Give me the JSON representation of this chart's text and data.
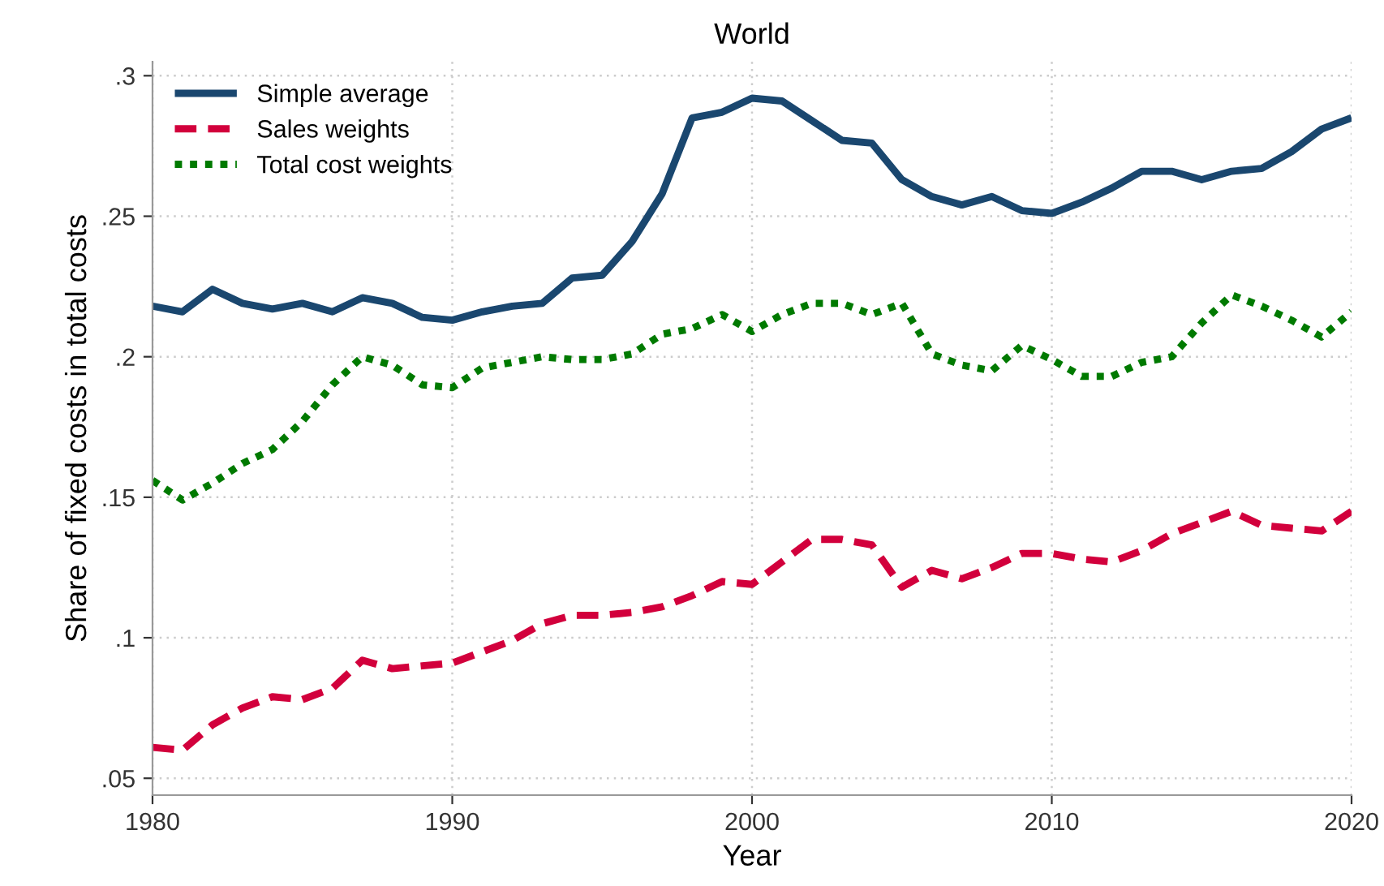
{
  "chart_data": {
    "type": "line",
    "title": "World",
    "xlabel": "Year",
    "ylabel": "Share of fixed costs in total costs",
    "x": [
      1980,
      1981,
      1982,
      1983,
      1984,
      1985,
      1986,
      1987,
      1988,
      1989,
      1990,
      1991,
      1992,
      1993,
      1994,
      1995,
      1996,
      1997,
      1998,
      1999,
      2000,
      2001,
      2002,
      2003,
      2004,
      2005,
      2006,
      2007,
      2008,
      2009,
      2010,
      2011,
      2012,
      2013,
      2014,
      2015,
      2016,
      2017,
      2018,
      2019,
      2020
    ],
    "series": [
      {
        "name": "Simple average",
        "color": "#1a476f",
        "line_style": "solid",
        "values": [
          0.218,
          0.216,
          0.224,
          0.219,
          0.217,
          0.219,
          0.216,
          0.221,
          0.219,
          0.214,
          0.213,
          0.216,
          0.218,
          0.219,
          0.228,
          0.229,
          0.241,
          0.258,
          0.285,
          0.287,
          0.292,
          0.291,
          0.284,
          0.277,
          0.276,
          0.263,
          0.257,
          0.254,
          0.257,
          0.252,
          0.251,
          0.255,
          0.26,
          0.266,
          0.266,
          0.263,
          0.266,
          0.267,
          0.273,
          0.281,
          0.285
        ]
      },
      {
        "name": "Sales weights",
        "color": "#d2003c",
        "line_style": "dashed",
        "values": [
          0.061,
          0.06,
          0.069,
          0.075,
          0.079,
          0.078,
          0.082,
          0.092,
          0.089,
          0.09,
          0.091,
          0.095,
          0.099,
          0.105,
          0.108,
          0.108,
          0.109,
          0.111,
          0.115,
          0.12,
          0.119,
          0.127,
          0.135,
          0.135,
          0.133,
          0.118,
          0.124,
          0.121,
          0.125,
          0.13,
          0.13,
          0.128,
          0.127,
          0.131,
          0.137,
          0.141,
          0.145,
          0.14,
          0.139,
          0.138,
          0.145
        ]
      },
      {
        "name": "Total cost weights",
        "color": "#007a00",
        "line_style": "dotted",
        "values": [
          0.156,
          0.149,
          0.155,
          0.162,
          0.167,
          0.177,
          0.19,
          0.2,
          0.197,
          0.19,
          0.189,
          0.196,
          0.198,
          0.2,
          0.199,
          0.199,
          0.201,
          0.208,
          0.21,
          0.215,
          0.209,
          0.215,
          0.219,
          0.219,
          0.215,
          0.219,
          0.201,
          0.197,
          0.195,
          0.204,
          0.199,
          0.193,
          0.193,
          0.198,
          0.2,
          0.212,
          0.222,
          0.218,
          0.213,
          0.207,
          0.216
        ]
      }
    ],
    "xlim": [
      1980,
      2020
    ],
    "ylim": [
      0.044,
      0.305
    ],
    "xticks": [
      1980,
      1990,
      2000,
      2010,
      2020
    ],
    "yticks": [
      {
        "value": 0.05,
        "label": ".05"
      },
      {
        "value": 0.1,
        "label": ".1"
      },
      {
        "value": 0.15,
        "label": ".15"
      },
      {
        "value": 0.2,
        "label": ".2"
      },
      {
        "value": 0.25,
        "label": ".25"
      },
      {
        "value": 0.3,
        "label": ".3"
      }
    ],
    "grid": true,
    "legend": "top left",
    "marker": "none"
  }
}
